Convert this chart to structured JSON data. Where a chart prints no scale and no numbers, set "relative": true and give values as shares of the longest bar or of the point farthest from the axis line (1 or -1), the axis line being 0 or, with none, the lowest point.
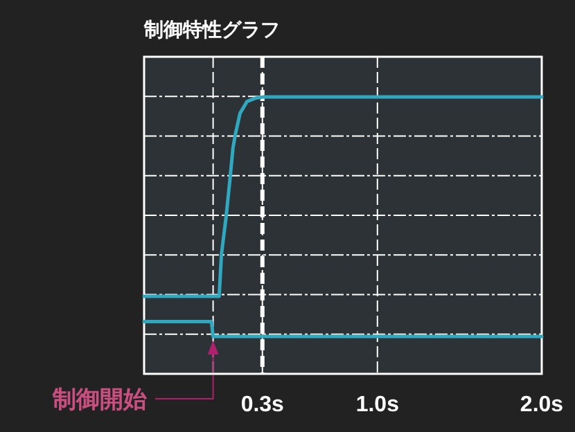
{
  "chart_data": {
    "type": "line",
    "title": "制御特性グラフ",
    "relative": true,
    "grid": true,
    "line_style": "solid",
    "xlim": [
      -0.42,
      2.0
    ],
    "xticks": [
      {
        "value": 0.3,
        "label": "0.3s"
      },
      {
        "value": 1.0,
        "label": "1.0s"
      },
      {
        "value": 2.0,
        "label": "2.0s"
      }
    ],
    "series": [
      {
        "color": "#2fa8c0",
        "x": [
          -0.42,
          0.037,
          0.051,
          0.079,
          0.102,
          0.121,
          0.136,
          0.164,
          0.206,
          0.262,
          0.304,
          2.0
        ],
        "values": [
          0.168,
          0.168,
          0.345,
          0.499,
          0.653,
          0.788,
          0.846,
          0.932,
          0.981,
          0.996,
          1.0,
          1.0
        ]
      },
      {
        "color": "#2fa8c0",
        "x": [
          -0.42,
          -0.01,
          0.0,
          2.0
        ],
        "values": [
          0.062,
          0.062,
          0,
          0
        ]
      }
    ],
    "ref_lines": [
      {
        "axis": "x",
        "value": 0,
        "label": "制御開始",
        "color": "#ffffff",
        "line_style": "dashed"
      },
      {
        "axis": "x",
        "value": 0.3,
        "label": null,
        "color": "#ffffff",
        "line_style": "dashed"
      }
    ]
  }
}
